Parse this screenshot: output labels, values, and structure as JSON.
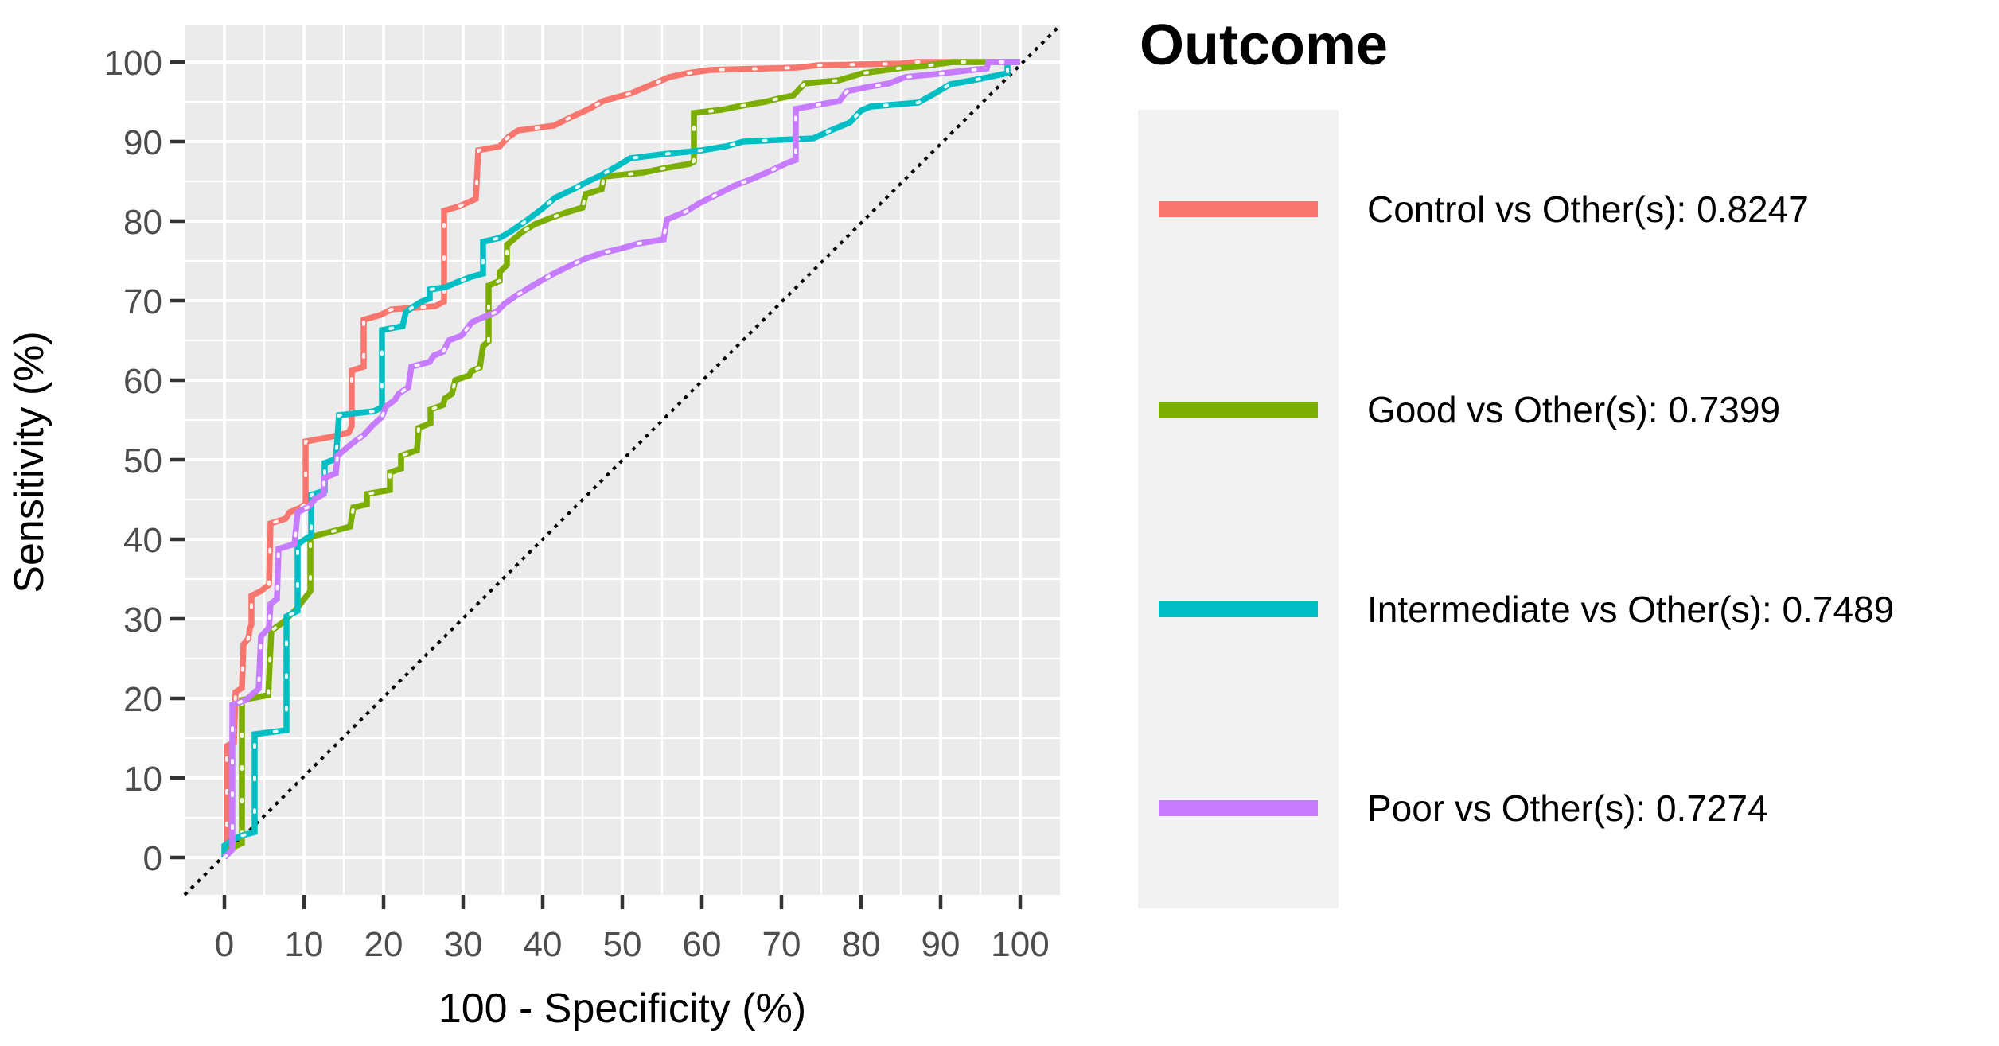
{
  "chart_data": {
    "type": "line",
    "subtype": "roc-curves",
    "title": "",
    "xlabel": "100 - Specificity (%)",
    "ylabel": "Sensitivity (%)",
    "xlim": [
      -5,
      105
    ],
    "ylim": [
      -5,
      105
    ],
    "x_ticks": [
      0,
      10,
      20,
      30,
      40,
      50,
      60,
      70,
      80,
      90,
      100
    ],
    "y_ticks": [
      0,
      10,
      20,
      30,
      40,
      50,
      60,
      70,
      80,
      90,
      100
    ],
    "minor_ticks_every": 5,
    "grid": true,
    "panel_bg": "#ebebeb",
    "grid_major_color": "#ffffff",
    "grid_minor_color": "#ffffff",
    "tick_color": "#333333",
    "tick_label_color": "#4d4d4d",
    "diagonal_reference": true,
    "diagonal_color": "#000000",
    "legend_position": "right",
    "legend_title": "Outcome",
    "series": [
      {
        "name": "Control",
        "label": "Control vs Other(s): 0.8247",
        "auc": 0.8247,
        "color": "#F8766D",
        "points": [
          [
            0,
            0
          ],
          [
            0.3,
            0.5
          ],
          [
            0.3,
            14
          ],
          [
            1.2,
            14.5
          ],
          [
            1.4,
            20.8
          ],
          [
            2.2,
            21.3
          ],
          [
            2.4,
            26.8
          ],
          [
            3,
            27.5
          ],
          [
            3.2,
            28.8
          ],
          [
            3.4,
            29.3
          ],
          [
            3.4,
            32.9
          ],
          [
            4.6,
            33.5
          ],
          [
            5.6,
            34.3
          ],
          [
            5.8,
            42
          ],
          [
            7.7,
            42.6
          ],
          [
            8.2,
            43.4
          ],
          [
            9.6,
            44
          ],
          [
            10.2,
            44.5
          ],
          [
            10.2,
            52.3
          ],
          [
            13,
            52.8
          ],
          [
            15.6,
            53.4
          ],
          [
            16,
            54.2
          ],
          [
            16,
            61.2
          ],
          [
            17.5,
            61.7
          ],
          [
            17.5,
            67.6
          ],
          [
            19.6,
            68.2
          ],
          [
            21,
            68.9
          ],
          [
            26.5,
            69.3
          ],
          [
            27.6,
            69.9
          ],
          [
            27.6,
            81.3
          ],
          [
            29.6,
            81.9
          ],
          [
            31.6,
            82.8
          ],
          [
            31.9,
            88.9
          ],
          [
            34.6,
            89.4
          ],
          [
            35.6,
            90.5
          ],
          [
            36.9,
            91.4
          ],
          [
            41.4,
            92
          ],
          [
            43.2,
            92.9
          ],
          [
            45.8,
            94.1
          ],
          [
            47.6,
            95.1
          ],
          [
            51.2,
            96.1
          ],
          [
            52.6,
            96.7
          ],
          [
            55.9,
            98.1
          ],
          [
            58.2,
            98.6
          ],
          [
            61,
            99
          ],
          [
            72,
            99.3
          ],
          [
            74.6,
            99.6
          ],
          [
            85,
            99.8
          ],
          [
            87,
            100
          ],
          [
            100,
            100
          ]
        ]
      },
      {
        "name": "Good",
        "label": "Good vs Other(s): 0.7399",
        "auc": 0.7399,
        "color": "#7CAE00",
        "points": [
          [
            0,
            0
          ],
          [
            0.5,
            1
          ],
          [
            2.2,
            1.8
          ],
          [
            2.2,
            19.8
          ],
          [
            5.5,
            20.4
          ],
          [
            5.9,
            28.5
          ],
          [
            7.4,
            29.6
          ],
          [
            9,
            31.2
          ],
          [
            10.8,
            33.5
          ],
          [
            10.8,
            40.3
          ],
          [
            13.2,
            40.9
          ],
          [
            15.8,
            41.6
          ],
          [
            16.2,
            44
          ],
          [
            17.9,
            44.4
          ],
          [
            17.9,
            45.7
          ],
          [
            20.8,
            46.2
          ],
          [
            20.8,
            48.4
          ],
          [
            22.2,
            48.9
          ],
          [
            22.2,
            50.5
          ],
          [
            24.2,
            51.2
          ],
          [
            24.4,
            54
          ],
          [
            25.9,
            54.6
          ],
          [
            25.9,
            56.3
          ],
          [
            27.5,
            56.9
          ],
          [
            27.7,
            57.7
          ],
          [
            28.6,
            58.3
          ],
          [
            29,
            60
          ],
          [
            30.8,
            60.6
          ],
          [
            31,
            61.1
          ],
          [
            32.1,
            61.6
          ],
          [
            32.5,
            64.3
          ],
          [
            33.2,
            64.9
          ],
          [
            33.2,
            71.9
          ],
          [
            34.6,
            72.5
          ],
          [
            34.6,
            73.6
          ],
          [
            35.5,
            74.5
          ],
          [
            35.5,
            77
          ],
          [
            37.5,
            78.7
          ],
          [
            39,
            79.6
          ],
          [
            41,
            80.4
          ],
          [
            43,
            81.1
          ],
          [
            45,
            81.7
          ],
          [
            45.4,
            83.4
          ],
          [
            47.4,
            84
          ],
          [
            47.7,
            85.6
          ],
          [
            52.6,
            86.1
          ],
          [
            55,
            86.6
          ],
          [
            58.5,
            87.2
          ],
          [
            59,
            87.5
          ],
          [
            59,
            93.6
          ],
          [
            62.5,
            94
          ],
          [
            65,
            94.5
          ],
          [
            68,
            95
          ],
          [
            69.6,
            95.4
          ],
          [
            71.5,
            95.8
          ],
          [
            72.9,
            97.3
          ],
          [
            77.2,
            97.7
          ],
          [
            80.2,
            98.6
          ],
          [
            85.4,
            99.3
          ],
          [
            88,
            99.5
          ],
          [
            91.5,
            100
          ],
          [
            100,
            100
          ]
        ]
      },
      {
        "name": "Intermediate",
        "label": "Intermediate vs Other(s): 0.7489",
        "auc": 0.7489,
        "color": "#00BFC4",
        "points": [
          [
            0,
            0
          ],
          [
            0,
            1.5
          ],
          [
            1,
            2.2
          ],
          [
            2,
            2.7
          ],
          [
            3.8,
            3.2
          ],
          [
            3.8,
            15.5
          ],
          [
            7.8,
            16
          ],
          [
            7.8,
            30.3
          ],
          [
            9.2,
            31
          ],
          [
            9.2,
            39.4
          ],
          [
            10.9,
            40.5
          ],
          [
            10.9,
            45.6
          ],
          [
            12.6,
            46.1
          ],
          [
            12.6,
            49.6
          ],
          [
            14,
            50.1
          ],
          [
            14.4,
            55.6
          ],
          [
            18.8,
            56.1
          ],
          [
            19.8,
            56.6
          ],
          [
            19.8,
            66.3
          ],
          [
            22.4,
            66.8
          ],
          [
            22.8,
            68.6
          ],
          [
            24.6,
            69.8
          ],
          [
            25.8,
            70.3
          ],
          [
            25.8,
            71.4
          ],
          [
            27.8,
            71.7
          ],
          [
            29.2,
            72.3
          ],
          [
            31,
            73
          ],
          [
            32.5,
            73.4
          ],
          [
            32.5,
            77.4
          ],
          [
            34.6,
            77.9
          ],
          [
            36,
            78.7
          ],
          [
            38,
            80.1
          ],
          [
            40,
            81.6
          ],
          [
            41.5,
            82.9
          ],
          [
            44,
            84.1
          ],
          [
            45.7,
            85
          ],
          [
            47.2,
            85.7
          ],
          [
            49,
            86.7
          ],
          [
            51,
            87.9
          ],
          [
            55,
            88.4
          ],
          [
            60,
            88.9
          ],
          [
            63,
            89.4
          ],
          [
            65.2,
            90
          ],
          [
            74,
            90.4
          ],
          [
            76.2,
            91.4
          ],
          [
            78.6,
            92.4
          ],
          [
            80,
            93.9
          ],
          [
            81.2,
            94.4
          ],
          [
            87.2,
            94.9
          ],
          [
            89.2,
            96
          ],
          [
            91.2,
            97.2
          ],
          [
            94,
            97.7
          ],
          [
            96,
            98.1
          ],
          [
            98.4,
            98.6
          ],
          [
            98.4,
            100
          ],
          [
            100,
            100
          ]
        ]
      },
      {
        "name": "Poor",
        "label": "Poor vs Other(s): 0.7274",
        "auc": 0.7274,
        "color": "#C77CFF",
        "points": [
          [
            0,
            0
          ],
          [
            1,
            1
          ],
          [
            1,
            19.2
          ],
          [
            2.7,
            19.8
          ],
          [
            3.6,
            20.6
          ],
          [
            4.3,
            21.2
          ],
          [
            4.6,
            27.8
          ],
          [
            5.6,
            28.9
          ],
          [
            5.8,
            31.9
          ],
          [
            6.6,
            32.5
          ],
          [
            6.8,
            38.8
          ],
          [
            8.8,
            39.4
          ],
          [
            9.2,
            43.4
          ],
          [
            10.6,
            44.1
          ],
          [
            11.4,
            45.1
          ],
          [
            12.5,
            45.7
          ],
          [
            12.5,
            47.7
          ],
          [
            14,
            48.3
          ],
          [
            14.2,
            50.5
          ],
          [
            15.5,
            51.6
          ],
          [
            16.5,
            52.4
          ],
          [
            17.5,
            53.1
          ],
          [
            18.6,
            54.3
          ],
          [
            19.8,
            55.4
          ],
          [
            20.3,
            56.7
          ],
          [
            21.4,
            57.5
          ],
          [
            21.9,
            58.3
          ],
          [
            23.1,
            59.1
          ],
          [
            23.5,
            61.7
          ],
          [
            25.8,
            62.3
          ],
          [
            26.3,
            63.1
          ],
          [
            27.5,
            63.6
          ],
          [
            28.2,
            65
          ],
          [
            29.8,
            65.6
          ],
          [
            31.1,
            67.3
          ],
          [
            32.5,
            67.9
          ],
          [
            34.2,
            68.6
          ],
          [
            35.2,
            69.6
          ],
          [
            36.6,
            70.6
          ],
          [
            38.1,
            71.5
          ],
          [
            39.6,
            72.4
          ],
          [
            41.4,
            73.4
          ],
          [
            43.2,
            74.3
          ],
          [
            45.4,
            75.3
          ],
          [
            47.5,
            76
          ],
          [
            50,
            76.6
          ],
          [
            52.1,
            77.2
          ],
          [
            55.2,
            77.7
          ],
          [
            55.6,
            80.2
          ],
          [
            58,
            81.2
          ],
          [
            59.6,
            82.2
          ],
          [
            62,
            83.4
          ],
          [
            64.2,
            84.5
          ],
          [
            66.3,
            85.3
          ],
          [
            68.6,
            86.3
          ],
          [
            70.7,
            87.3
          ],
          [
            71.8,
            87.7
          ],
          [
            71.8,
            94.1
          ],
          [
            75,
            94.7
          ],
          [
            77.3,
            95.1
          ],
          [
            78.2,
            96.3
          ],
          [
            81,
            96.9
          ],
          [
            83.5,
            97.3
          ],
          [
            85.5,
            98.1
          ],
          [
            89.5,
            98.5
          ],
          [
            93,
            98.9
          ],
          [
            95.8,
            99.2
          ],
          [
            96,
            100
          ],
          [
            100,
            100
          ]
        ]
      }
    ]
  },
  "axes": {
    "x_title": "100 - Specificity (%)",
    "y_title": "Sensitivity (%)"
  },
  "legend": {
    "title": "Outcome",
    "entries": [
      {
        "label": "Control vs Other(s): 0.8247",
        "color": "#F8766D"
      },
      {
        "label": "Good vs Other(s): 0.7399",
        "color": "#7CAE00"
      },
      {
        "label": "Intermediate vs Other(s): 0.7489",
        "color": "#00BFC4"
      },
      {
        "label": "Poor vs Other(s): 0.7274",
        "color": "#C77CFF"
      }
    ]
  }
}
